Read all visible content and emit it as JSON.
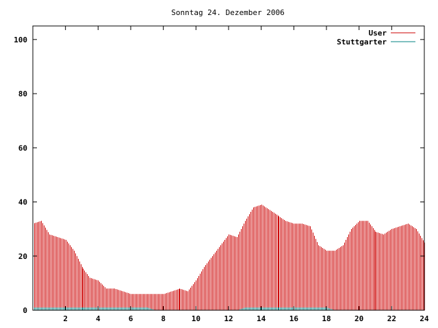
{
  "chart_data": {
    "type": "bar",
    "title": "Sonntag 24. Dezember 2006",
    "xlabel": "",
    "ylabel": "",
    "xlim": [
      0,
      24
    ],
    "ylim": [
      0,
      105
    ],
    "x_ticks": [
      2,
      4,
      6,
      8,
      10,
      12,
      14,
      16,
      18,
      20,
      22,
      24
    ],
    "y_ticks": [
      0,
      20,
      40,
      60,
      80,
      100
    ],
    "grid": false,
    "legend_position": "top-right",
    "series": [
      {
        "name": "User",
        "color": "#cc0000",
        "x": [
          0,
          0.5,
          1,
          1.5,
          2,
          2.5,
          3,
          3.5,
          4,
          4.5,
          5,
          5.5,
          6,
          6.5,
          7,
          7.5,
          8,
          8.5,
          9,
          9.5,
          10,
          10.5,
          11,
          11.5,
          12,
          12.5,
          13,
          13.5,
          14,
          14.5,
          15,
          15.5,
          16,
          16.5,
          17,
          17.5,
          18,
          18.5,
          19,
          19.5,
          20,
          20.5,
          21,
          21.5,
          22,
          22.5,
          23,
          23.5,
          24
        ],
        "values": [
          32,
          33,
          28,
          27,
          26,
          22,
          16,
          12,
          11,
          8,
          8,
          7,
          6,
          6,
          6,
          6,
          6,
          7,
          8,
          7,
          11,
          16,
          20,
          24,
          28,
          27,
          33,
          38,
          39,
          37,
          35,
          33,
          32,
          32,
          31,
          24,
          22,
          22,
          24,
          30,
          33,
          33,
          29,
          28,
          30,
          31,
          32,
          30,
          25
        ]
      },
      {
        "name": "Stuttgarter",
        "color": "#008080",
        "x": [
          0,
          0.5,
          1,
          1.5,
          2,
          2.5,
          3,
          3.5,
          4,
          4.5,
          5,
          5.5,
          6,
          6.5,
          7,
          7.5,
          8,
          8.5,
          9,
          9.5,
          10,
          10.5,
          11,
          11.5,
          12,
          12.5,
          13,
          13.5,
          14,
          14.5,
          15,
          15.5,
          16,
          16.5,
          17,
          17.5,
          18,
          18.5,
          19,
          19.5,
          20,
          20.5,
          21,
          21.5,
          22,
          22.5,
          23,
          23.5,
          24
        ],
        "values": [
          1,
          1,
          1,
          1,
          1,
          1,
          1,
          1,
          1,
          1,
          1,
          1,
          1,
          1,
          1,
          0,
          0,
          0,
          0,
          0,
          0,
          0,
          0,
          0,
          0,
          0,
          1,
          1,
          1,
          1,
          1,
          1,
          1,
          1,
          1,
          1,
          1,
          0,
          0,
          0,
          0,
          0,
          0,
          0,
          0,
          0,
          0,
          0,
          0
        ]
      }
    ]
  }
}
